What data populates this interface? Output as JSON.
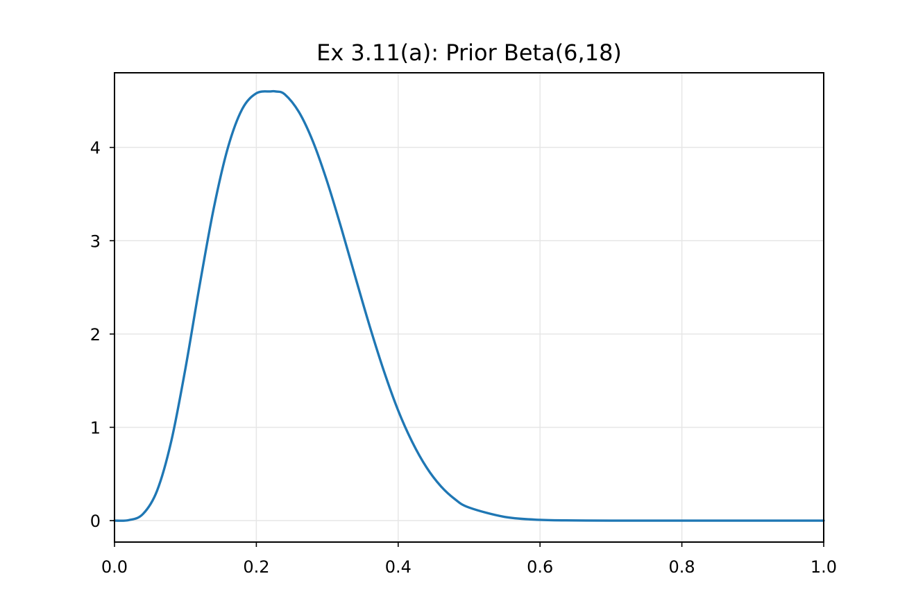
{
  "chart_data": {
    "type": "line",
    "title": "Ex 3.11(a): Prior Beta(6,18)",
    "xlabel": "",
    "ylabel": "",
    "xlim": [
      0.0,
      1.0
    ],
    "ylim": [
      -0.23,
      4.8
    ],
    "x_ticks": [
      0.0,
      0.2,
      0.4,
      0.6,
      0.8,
      1.0
    ],
    "x_tick_labels": [
      "0.0",
      "0.2",
      "0.4",
      "0.6",
      "0.8",
      "1.0"
    ],
    "y_ticks": [
      0,
      1,
      2,
      3,
      4
    ],
    "y_tick_labels": [
      "0",
      "1",
      "2",
      "3",
      "4"
    ],
    "grid": true,
    "legend": "none",
    "series": [
      {
        "color": "#1f77b4",
        "x": [
          0.0,
          0.02,
          0.04,
          0.06,
          0.08,
          0.1,
          0.12,
          0.14,
          0.16,
          0.18,
          0.2,
          0.22,
          0.2273,
          0.24,
          0.26,
          0.28,
          0.3,
          0.32,
          0.34,
          0.36,
          0.38,
          0.4,
          0.42,
          0.44,
          0.46,
          0.48,
          0.5,
          0.55,
          0.6,
          0.65,
          0.7,
          0.8,
          0.9,
          1.0
        ],
        "y": [
          0.0,
          0.005,
          0.07,
          0.32,
          0.85,
          1.63,
          2.52,
          3.35,
          4.0,
          4.41,
          4.58,
          4.6,
          4.6,
          4.57,
          4.38,
          4.06,
          3.63,
          3.13,
          2.6,
          2.08,
          1.6,
          1.18,
          0.84,
          0.57,
          0.37,
          0.23,
          0.14,
          0.04,
          0.008,
          0.002,
          0.0,
          0.0,
          0.0,
          0.0
        ]
      }
    ]
  }
}
